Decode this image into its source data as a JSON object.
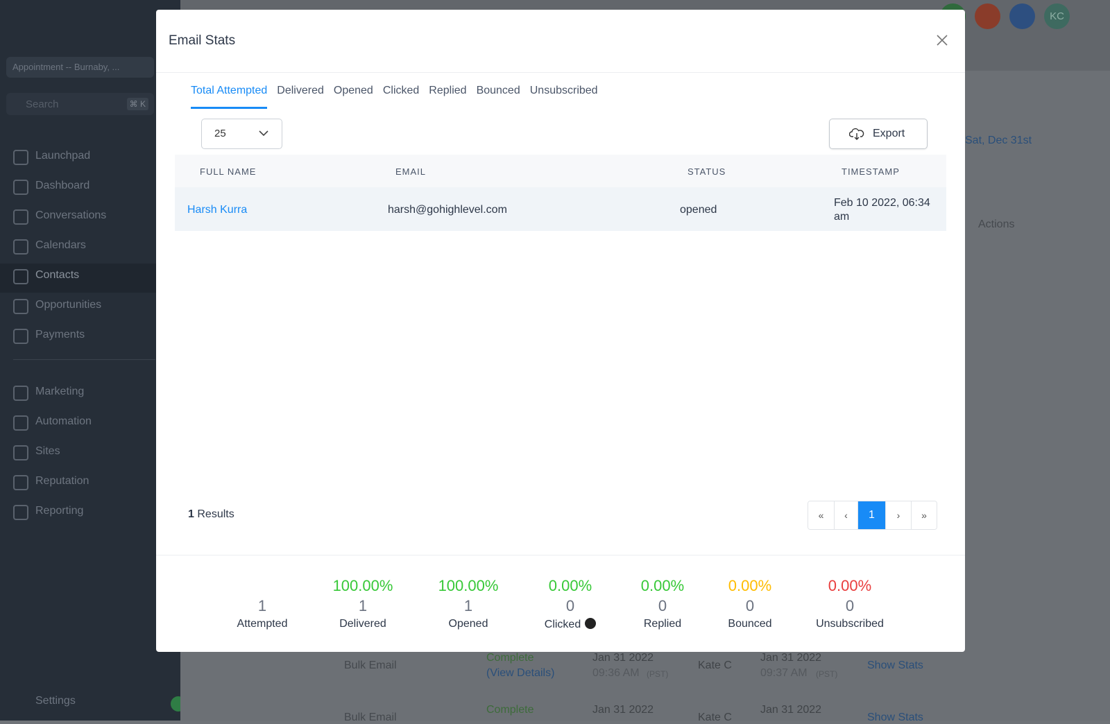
{
  "sidebar": {
    "location": "Appointment -- Burnaby, ...",
    "search": "Search",
    "shortcut": "⌘ K",
    "nav": [
      "Launchpad",
      "Dashboard",
      "Conversations",
      "Calendars",
      "Contacts",
      "Opportunities",
      "Payments",
      "Marketing",
      "Automation",
      "Sites",
      "Reputation",
      "Reporting"
    ],
    "settings": "Settings"
  },
  "topbar": {
    "avatar": "KC"
  },
  "background": {
    "date": "Sat, Dec 31st",
    "actions": "Actions",
    "rows": [
      [
        "Bulk Email",
        "Complete",
        "(View Details)",
        "Jan 31 2022",
        "09:36 AM",
        "(PST)",
        "Kate C",
        "Jan 31 2022",
        "09:37 AM",
        "(PST)",
        "Show Stats"
      ],
      [
        "Bulk Email",
        "Complete",
        "",
        "Jan 31 2022",
        "",
        "",
        "Kate C",
        "Jan 31 2022",
        "",
        "",
        "Show Stats"
      ]
    ]
  },
  "modal": {
    "title": "Email Stats",
    "tabs": [
      "Total Attempted",
      "Delivered",
      "Opened",
      "Clicked",
      "Replied",
      "Bounced",
      "Unsubscribed"
    ],
    "active_tab": 0,
    "page_size": "25",
    "export": "Export",
    "columns": [
      "FULL NAME",
      "EMAIL",
      "STATUS",
      "TIMESTAMP"
    ],
    "rows": [
      [
        "Harsh Kurra",
        "harsh@gohighlevel.com",
        "opened",
        "Feb 10 2022, 06:34 am"
      ]
    ],
    "results_count": "1",
    "results_label": "Results",
    "pagination": [
      "«",
      "‹",
      "1",
      "›",
      "»"
    ],
    "active_page": 2,
    "stats": [
      {
        "count": "1",
        "label": "Attempted"
      },
      {
        "percent": "100.00%",
        "count": "1",
        "label": "Delivered",
        "color": "#37c837"
      },
      {
        "percent": "100.00%",
        "count": "1",
        "label": "Opened",
        "color": "#37c837"
      },
      {
        "percent": "0.00%",
        "count": "0",
        "label": "Clicked",
        "color": "#37c837"
      },
      {
        "percent": "0.00%",
        "count": "0",
        "label": "Replied",
        "color": "#37c837"
      },
      {
        "percent": "0.00%",
        "count": "0",
        "label": "Bounced",
        "color": "#ffbc00"
      },
      {
        "percent": "0.00%",
        "count": "0",
        "label": "Unsubscribed",
        "color": "#e93d3d"
      }
    ]
  }
}
